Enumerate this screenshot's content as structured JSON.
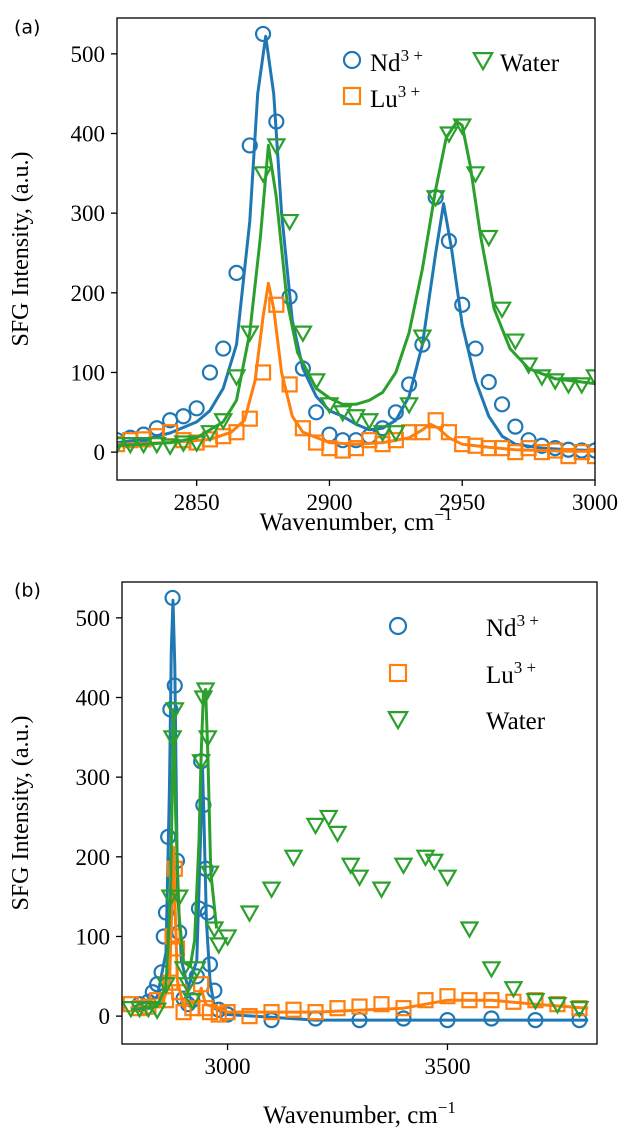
{
  "chart_data": [
    {
      "type": "scatter",
      "panel_label": "(a)",
      "xlabel": "Wavenumber, cm",
      "xlabel_sup": "−1",
      "ylabel": "SFG Intensity, (a.u.)",
      "xlim": [
        2820,
        3000
      ],
      "ylim": [
        -35,
        545
      ],
      "xticks": [
        2850,
        2900,
        2950,
        3000
      ],
      "yticks": [
        0,
        100,
        200,
        300,
        400,
        500
      ],
      "grid": false,
      "legend_placement": "top-right",
      "series": [
        {
          "name": "Nd",
          "name_sup": "3 +",
          "color": "#1f77b4",
          "marker": "circle",
          "x": [
            2820,
            2825,
            2830,
            2835,
            2840,
            2845,
            2850,
            2855,
            2860,
            2865,
            2870,
            2875,
            2880,
            2885,
            2890,
            2895,
            2900,
            2905,
            2910,
            2915,
            2920,
            2925,
            2930,
            2935,
            2940,
            2945,
            2950,
            2955,
            2960,
            2965,
            2970,
            2975,
            2980,
            2985,
            2990,
            2995,
            3000
          ],
          "y": [
            15,
            18,
            22,
            30,
            40,
            45,
            55,
            100,
            130,
            225,
            385,
            525,
            415,
            195,
            105,
            50,
            22,
            15,
            15,
            20,
            30,
            50,
            85,
            135,
            320,
            265,
            185,
            130,
            88,
            60,
            32,
            15,
            8,
            5,
            3,
            2,
            2
          ],
          "fit_x": [
            2820,
            2830,
            2840,
            2850,
            2855,
            2860,
            2865,
            2870,
            2873,
            2876,
            2879,
            2882,
            2886,
            2890,
            2895,
            2900,
            2905,
            2910,
            2915,
            2920,
            2925,
            2930,
            2935,
            2940,
            2943,
            2946,
            2950,
            2955,
            2960,
            2965,
            2970,
            2980,
            2990,
            3000
          ],
          "fit_y": [
            12,
            16,
            24,
            38,
            52,
            80,
            135,
            290,
            450,
            522,
            450,
            300,
            165,
            105,
            70,
            52,
            45,
            35,
            28,
            30,
            40,
            70,
            135,
            250,
            312,
            255,
            160,
            90,
            45,
            20,
            10,
            5,
            3,
            2
          ]
        },
        {
          "name": "Lu",
          "name_sup": "3 +",
          "color": "#ff7f0e",
          "marker": "square",
          "x": [
            2820,
            2825,
            2830,
            2835,
            2840,
            2845,
            2850,
            2855,
            2860,
            2865,
            2870,
            2875,
            2880,
            2885,
            2890,
            2895,
            2900,
            2905,
            2910,
            2915,
            2920,
            2925,
            2930,
            2935,
            2940,
            2945,
            2950,
            2955,
            2960,
            2965,
            2970,
            2975,
            2980,
            2985,
            2990,
            2995,
            3000
          ],
          "y": [
            10,
            15,
            16,
            20,
            25,
            15,
            12,
            16,
            20,
            25,
            42,
            100,
            185,
            85,
            30,
            12,
            5,
            2,
            5,
            15,
            10,
            15,
            25,
            25,
            40,
            25,
            10,
            8,
            5,
            5,
            0,
            5,
            0,
            2,
            -5,
            0,
            -5
          ],
          "fit_x": [
            2820,
            2840,
            2855,
            2863,
            2868,
            2872,
            2875,
            2877,
            2879,
            2882,
            2886,
            2890,
            2900,
            2910,
            2920,
            2930,
            2935,
            2938,
            2941,
            2945,
            2950,
            2960,
            2970,
            2980,
            2990,
            3000
          ],
          "fit_y": [
            10,
            12,
            16,
            25,
            40,
            90,
            170,
            212,
            180,
            100,
            45,
            25,
            12,
            10,
            12,
            18,
            28,
            35,
            30,
            18,
            10,
            6,
            3,
            2,
            1,
            1
          ]
        },
        {
          "name": "Water",
          "color": "#2ca02c",
          "marker": "triangle-down",
          "x": [
            2820,
            2825,
            2830,
            2835,
            2840,
            2845,
            2850,
            2855,
            2860,
            2865,
            2870,
            2875,
            2880,
            2885,
            2890,
            2895,
            2900,
            2905,
            2910,
            2915,
            2920,
            2925,
            2930,
            2935,
            2940,
            2945,
            2950,
            2955,
            2960,
            2965,
            2970,
            2975,
            2980,
            2985,
            2990,
            2995,
            3000
          ],
          "y": [
            10,
            10,
            10,
            10,
            8,
            12,
            12,
            25,
            40,
            95,
            150,
            350,
            385,
            290,
            150,
            90,
            60,
            50,
            45,
            40,
            25,
            25,
            60,
            145,
            320,
            400,
            410,
            350,
            270,
            180,
            140,
            110,
            95,
            90,
            85,
            85,
            95
          ],
          "fit_x": [
            2820,
            2840,
            2850,
            2860,
            2865,
            2870,
            2874,
            2877,
            2880,
            2884,
            2888,
            2895,
            2900,
            2905,
            2910,
            2915,
            2920,
            2925,
            2930,
            2935,
            2940,
            2944,
            2948,
            2950,
            2953,
            2957,
            2962,
            2968,
            2975,
            2985,
            3000
          ],
          "fit_y": [
            8,
            12,
            18,
            38,
            65,
            150,
            270,
            385,
            320,
            190,
            125,
            80,
            68,
            60,
            60,
            65,
            75,
            100,
            150,
            230,
            330,
            395,
            415,
            410,
            360,
            270,
            180,
            130,
            105,
            92,
            86
          ]
        }
      ]
    },
    {
      "type": "scatter",
      "panel_label": "(b)",
      "xlabel": "Wavenumber, cm",
      "xlabel_sup": "−1",
      "ylabel": "SFG Intensity, (a.u.)",
      "xlim": [
        2760,
        3840
      ],
      "ylim": [
        -35,
        545
      ],
      "xticks": [
        3000,
        3500
      ],
      "yticks": [
        0,
        100,
        200,
        300,
        400,
        500
      ],
      "grid": false,
      "legend_placement": "top-right",
      "series": [
        {
          "name": "Nd",
          "name_sup": "3 +",
          "color": "#1f77b4",
          "marker": "circle",
          "x": [
            2800,
            2820,
            2830,
            2840,
            2850,
            2855,
            2860,
            2865,
            2870,
            2875,
            2880,
            2885,
            2890,
            2900,
            2910,
            2920,
            2930,
            2935,
            2940,
            2945,
            2950,
            2955,
            2960,
            2970,
            2980,
            3000,
            3100,
            3200,
            3300,
            3400,
            3500,
            3600,
            3700,
            3800
          ],
          "y": [
            15,
            18,
            30,
            40,
            55,
            100,
            130,
            225,
            385,
            525,
            415,
            195,
            105,
            22,
            15,
            20,
            50,
            135,
            320,
            265,
            185,
            130,
            65,
            32,
            8,
            2,
            -5,
            -3,
            -5,
            -3,
            -5,
            -3,
            -5,
            -5
          ],
          "fit_x": [
            2780,
            2840,
            2860,
            2868,
            2872,
            2876,
            2880,
            2886,
            2895,
            2910,
            2930,
            2940,
            2943,
            2946,
            2952,
            2960,
            2970,
            3000,
            3200,
            3400,
            3600,
            3820
          ],
          "fit_y": [
            10,
            24,
            80,
            290,
            460,
            522,
            440,
            165,
            70,
            35,
            70,
            250,
            312,
            255,
            120,
            45,
            10,
            2,
            -5,
            -5,
            -5,
            -5
          ]
        },
        {
          "name": "Lu",
          "name_sup": "3 +",
          "color": "#ff7f0e",
          "marker": "square",
          "x": [
            2780,
            2800,
            2820,
            2840,
            2860,
            2870,
            2875,
            2880,
            2885,
            2890,
            2900,
            2920,
            2940,
            2950,
            2960,
            2980,
            3000,
            3050,
            3100,
            3150,
            3200,
            3250,
            3300,
            3350,
            3400,
            3450,
            3500,
            3550,
            3600,
            3650,
            3700,
            3750,
            3800
          ],
          "y": [
            15,
            10,
            12,
            20,
            20,
            42,
            100,
            185,
            85,
            30,
            5,
            10,
            40,
            10,
            5,
            2,
            5,
            0,
            5,
            8,
            5,
            10,
            12,
            15,
            10,
            20,
            25,
            20,
            20,
            18,
            20,
            15,
            10
          ],
          "fit_x": [
            2780,
            2850,
            2868,
            2875,
            2877,
            2880,
            2886,
            2900,
            2930,
            2940,
            2950,
            3000,
            3200,
            3400,
            3500,
            3600,
            3700,
            3820
          ],
          "fit_y": [
            10,
            15,
            40,
            170,
            212,
            150,
            45,
            12,
            18,
            35,
            15,
            5,
            5,
            10,
            20,
            20,
            15,
            10
          ]
        },
        {
          "name": "Water",
          "color": "#2ca02c",
          "marker": "triangle-down",
          "x": [
            2780,
            2800,
            2820,
            2840,
            2860,
            2870,
            2875,
            2880,
            2890,
            2900,
            2910,
            2920,
            2930,
            2940,
            2945,
            2950,
            2955,
            2960,
            2970,
            2980,
            3000,
            3050,
            3100,
            3150,
            3200,
            3230,
            3250,
            3280,
            3300,
            3350,
            3400,
            3450,
            3470,
            3500,
            3550,
            3600,
            3650,
            3700,
            3750,
            3800
          ],
          "y": [
            10,
            10,
            10,
            8,
            40,
            150,
            350,
            385,
            150,
            60,
            40,
            20,
            60,
            320,
            400,
            410,
            350,
            180,
            110,
            90,
            100,
            130,
            160,
            200,
            240,
            250,
            230,
            190,
            175,
            160,
            190,
            200,
            195,
            175,
            110,
            60,
            35,
            20,
            15,
            10
          ],
          "fit_x": [
            2780,
            2840,
            2860,
            2870,
            2874,
            2877,
            2882,
            2890,
            2900,
            2915,
            2925,
            2935,
            2940,
            2945,
            2950,
            2955,
            2962,
            2975
          ],
          "fit_y": [
            8,
            12,
            38,
            150,
            270,
            385,
            250,
            125,
            68,
            62,
            95,
            220,
            330,
            405,
            410,
            330,
            180,
            110
          ]
        }
      ]
    }
  ]
}
